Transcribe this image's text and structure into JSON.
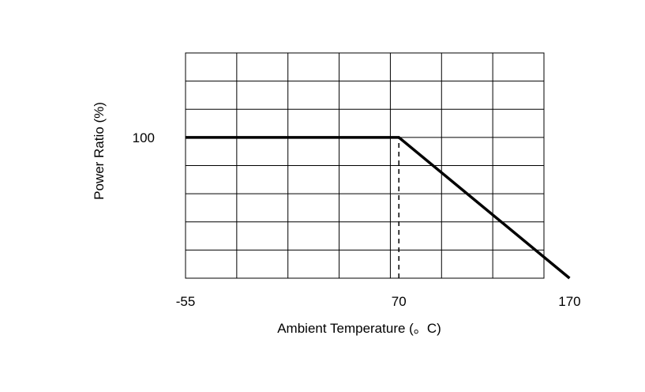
{
  "chart_data": {
    "type": "line",
    "title": "",
    "xlabel": "Ambient Temperature (。C)",
    "ylabel": "Power Ratio (%)",
    "x_ticks": [
      {
        "value": -55,
        "label": "-55"
      },
      {
        "value": 70,
        "label": "70"
      },
      {
        "value": 170,
        "label": "170"
      }
    ],
    "y_ticks": [
      {
        "value": 100,
        "label": "100"
      }
    ],
    "xlim": [
      -55,
      155
    ],
    "ylim": [
      0,
      160
    ],
    "grid": true,
    "series": [
      {
        "points": [
          [
            -55,
            100
          ],
          [
            70,
            100
          ],
          [
            170,
            0
          ]
        ],
        "style": "solid"
      }
    ],
    "reference_lines": [
      {
        "points": [
          [
            70,
            0
          ],
          [
            70,
            100
          ]
        ],
        "style": "dashed"
      }
    ]
  }
}
